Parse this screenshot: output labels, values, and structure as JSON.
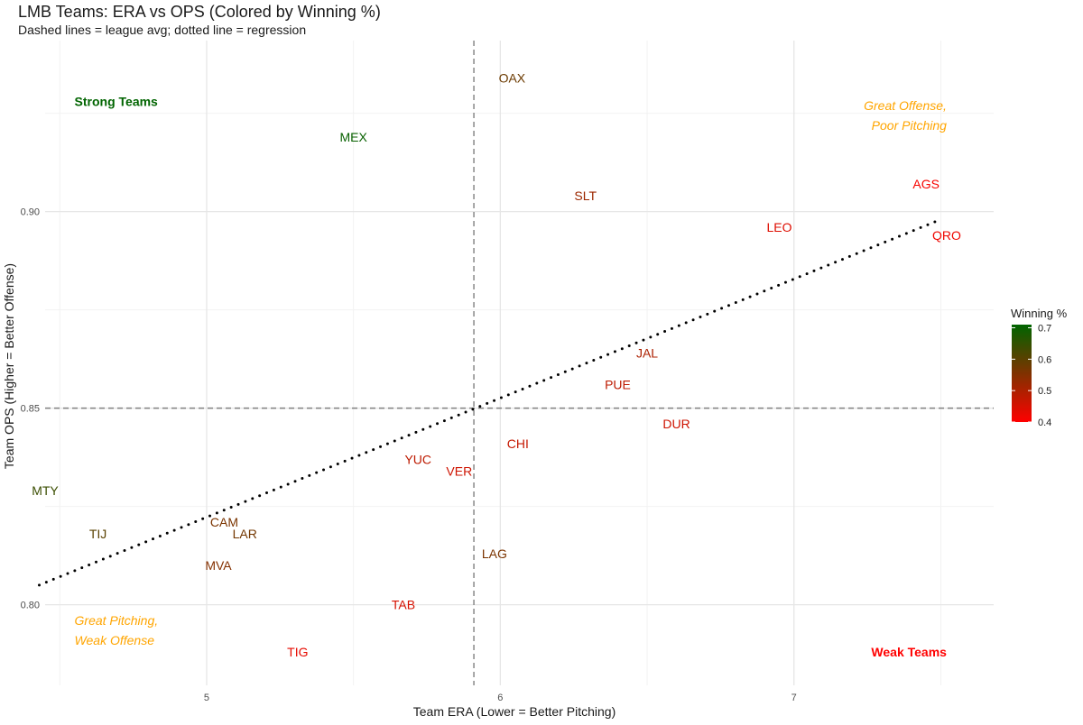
{
  "chart_data": {
    "type": "scatter",
    "title": "LMB Teams: ERA vs OPS (Colored by Winning %)",
    "subtitle": "Dashed lines = league avg; dotted line = regression",
    "xlabel": "Team ERA (Lower = Better Pitching)",
    "ylabel": "Team OPS (Higher = Better Offense)",
    "xlim": [
      4.45,
      7.68
    ],
    "ylim": [
      0.7795,
      0.9435
    ],
    "x_ticks": [
      5,
      6,
      7
    ],
    "y_ticks": [
      0.8,
      0.85,
      0.9
    ],
    "x_tick_labels": [
      "5",
      "6",
      "7"
    ],
    "y_tick_labels": [
      "0.80",
      "0.85",
      "0.90"
    ],
    "grid": true,
    "league_avg": {
      "era": 5.91,
      "ops": 0.85
    },
    "regression": {
      "x": [
        4.43,
        7.5
      ],
      "y": [
        0.805,
        0.898
      ]
    },
    "points": [
      {
        "team": "OAX",
        "era": 6.04,
        "ops": 0.934,
        "win_pct": 0.58
      },
      {
        "team": "MEX",
        "era": 5.5,
        "ops": 0.919,
        "win_pct": 0.7
      },
      {
        "team": "SLT",
        "era": 6.29,
        "ops": 0.904,
        "win_pct": 0.52
      },
      {
        "team": "AGS",
        "era": 7.45,
        "ops": 0.907,
        "win_pct": 0.41
      },
      {
        "team": "LEO",
        "era": 6.95,
        "ops": 0.896,
        "win_pct": 0.44
      },
      {
        "team": "QRO",
        "era": 7.52,
        "ops": 0.894,
        "win_pct": 0.42
      },
      {
        "team": "JAL",
        "era": 6.5,
        "ops": 0.864,
        "win_pct": 0.5
      },
      {
        "team": "PUE",
        "era": 6.4,
        "ops": 0.856,
        "win_pct": 0.48
      },
      {
        "team": "DUR",
        "era": 6.6,
        "ops": 0.846,
        "win_pct": 0.46
      },
      {
        "team": "CHI",
        "era": 6.06,
        "ops": 0.841,
        "win_pct": 0.47
      },
      {
        "team": "YUC",
        "era": 5.72,
        "ops": 0.837,
        "win_pct": 0.48
      },
      {
        "team": "VER",
        "era": 5.86,
        "ops": 0.834,
        "win_pct": 0.46
      },
      {
        "team": "MTY",
        "era": 4.45,
        "ops": 0.829,
        "win_pct": 0.64
      },
      {
        "team": "CAM",
        "era": 5.06,
        "ops": 0.821,
        "win_pct": 0.56
      },
      {
        "team": "TIJ",
        "era": 4.63,
        "ops": 0.818,
        "win_pct": 0.6
      },
      {
        "team": "LAR",
        "era": 5.13,
        "ops": 0.818,
        "win_pct": 0.57
      },
      {
        "team": "LAG",
        "era": 5.98,
        "ops": 0.813,
        "win_pct": 0.56
      },
      {
        "team": "MVA",
        "era": 5.04,
        "ops": 0.81,
        "win_pct": 0.55
      },
      {
        "team": "TAB",
        "era": 5.67,
        "ops": 0.8,
        "win_pct": 0.45
      },
      {
        "team": "TIG",
        "era": 5.31,
        "ops": 0.788,
        "win_pct": 0.43
      }
    ],
    "annotations": [
      {
        "lines": [
          "Strong Teams"
        ],
        "era": 4.55,
        "ops": 0.928,
        "anchor": "start",
        "style": "bold",
        "color": "#006400"
      },
      {
        "lines": [
          "Great Offense,",
          "Poor Pitching"
        ],
        "era": 7.52,
        "ops": 0.927,
        "anchor": "end",
        "style": "italic",
        "color": "#ffa500"
      },
      {
        "lines": [
          "Great Pitching,",
          "Weak Offense"
        ],
        "era": 4.55,
        "ops": 0.796,
        "anchor": "start",
        "style": "italic",
        "color": "#ffa500"
      },
      {
        "lines": [
          "Weak Teams"
        ],
        "era": 7.52,
        "ops": 0.788,
        "anchor": "end",
        "style": "bold",
        "color": "#ff0000"
      }
    ],
    "legend": {
      "title": "Winning %",
      "position": "right",
      "range": [
        0.4,
        0.71
      ],
      "ticks": [
        0.4,
        0.5,
        0.6,
        0.7
      ],
      "tick_labels": [
        "0.4",
        "0.5",
        "0.6",
        "0.7"
      ],
      "low_color": "#ff0000",
      "high_color": "#006400"
    }
  }
}
